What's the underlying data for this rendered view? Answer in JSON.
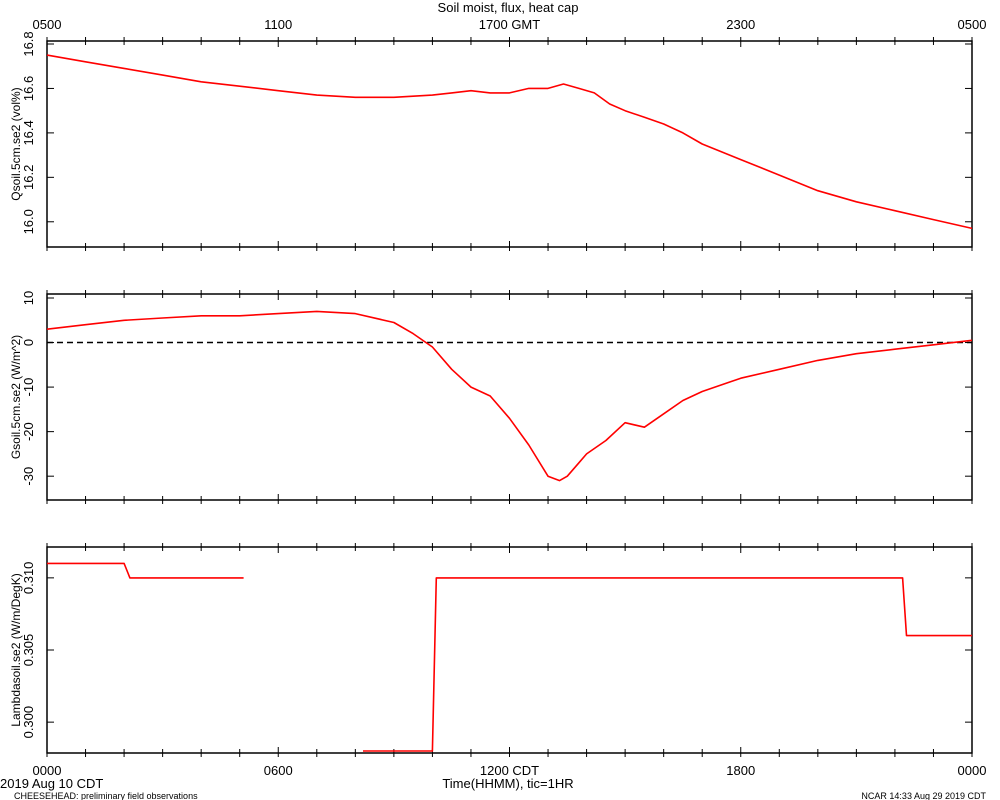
{
  "title": "Soil moist, flux, heat cap",
  "top_axis": {
    "ticks": [
      "0500",
      "1100",
      "1700 GMT",
      "2300",
      "0500"
    ]
  },
  "bottom_axis": {
    "ticks": [
      "0000",
      "0600",
      "1200 CDT",
      "1800",
      "0000"
    ],
    "label": "Time(HHMM), tic=1HR"
  },
  "footer": {
    "date": "2019 Aug 10 CDT",
    "project": "CHEESEHEAD: preliminary field observations",
    "credit": "NCAR 14:33 Aug 29 2019 CDT"
  },
  "colors": {
    "series": "#ff0000",
    "axis": "#000000",
    "zero_line": "#000000"
  },
  "chart_data": [
    {
      "type": "line",
      "ylabel": "Qsoil.5cm.se2 (vol%)",
      "ylim": [
        15.9,
        16.8
      ],
      "yticks": [
        16.0,
        16.2,
        16.4,
        16.6,
        16.8
      ],
      "ytick_labels": [
        "16.0",
        "16.2",
        "16.4",
        "16.6",
        "16.8"
      ],
      "xlim": [
        0,
        24
      ],
      "series": [
        {
          "x": [
            0,
            1,
            2,
            3,
            4,
            5,
            6,
            7,
            8,
            9,
            10,
            10.5,
            11,
            11.5,
            12,
            12.5,
            13,
            13.4,
            13.8,
            14.2,
            14.6,
            15,
            15.5,
            16,
            16.5,
            17,
            18,
            19,
            20,
            21,
            22,
            23,
            24
          ],
          "y": [
            16.75,
            16.72,
            16.69,
            16.66,
            16.63,
            16.61,
            16.59,
            16.57,
            16.56,
            16.56,
            16.57,
            16.58,
            16.59,
            16.58,
            16.58,
            16.6,
            16.6,
            16.62,
            16.6,
            16.58,
            16.53,
            16.5,
            16.47,
            16.44,
            16.4,
            16.35,
            16.28,
            16.21,
            16.14,
            16.09,
            16.05,
            16.01,
            15.97
          ]
        }
      ]
    },
    {
      "type": "line",
      "ylabel": "Gsoil.5cm.se2 (W/m^2)",
      "ylim": [
        -34,
        10
      ],
      "yticks": [
        10,
        0,
        -10,
        -20,
        -30
      ],
      "ytick_labels": [
        "10",
        "0",
        "-10",
        "-20",
        "-30"
      ],
      "xlim": [
        0,
        24
      ],
      "zero_line": true,
      "series": [
        {
          "x": [
            0,
            1,
            2,
            3,
            4,
            5,
            6,
            7,
            8,
            9,
            9.5,
            10,
            10.5,
            11,
            11.5,
            12,
            12.5,
            13,
            13.3,
            13.5,
            13.8,
            14,
            14.5,
            15,
            15.5,
            16,
            16.5,
            17,
            18,
            19,
            20,
            21,
            22,
            23,
            24
          ],
          "y": [
            3,
            4,
            5,
            5.5,
            6,
            6,
            6.5,
            7,
            6.5,
            4.5,
            2,
            -1,
            -6,
            -10,
            -12,
            -17,
            -23,
            -30,
            -31,
            -30,
            -27,
            -25,
            -22,
            -18,
            -19,
            -16,
            -13,
            -11,
            -8,
            -6,
            -4,
            -2.5,
            -1.5,
            -0.5,
            0.5
          ]
        }
      ]
    },
    {
      "type": "line",
      "ylabel": "Lambdasoil.se2 (W/m/DegK)",
      "ylim": [
        0.298,
        0.312
      ],
      "yticks": [
        0.3,
        0.305,
        0.31
      ],
      "ytick_labels": [
        "0.300",
        "0.305",
        "0.310"
      ],
      "xlim": [
        0,
        24
      ],
      "series": [
        {
          "x": [
            0,
            2.0,
            2.15,
            5.1
          ],
          "y": [
            0.311,
            0.311,
            0.31,
            0.31
          ]
        },
        {
          "x": [
            8.2,
            10.0,
            10.1,
            22.2,
            22.3,
            24
          ],
          "y": [
            0.298,
            0.298,
            0.31,
            0.31,
            0.306,
            0.306
          ]
        }
      ]
    }
  ]
}
